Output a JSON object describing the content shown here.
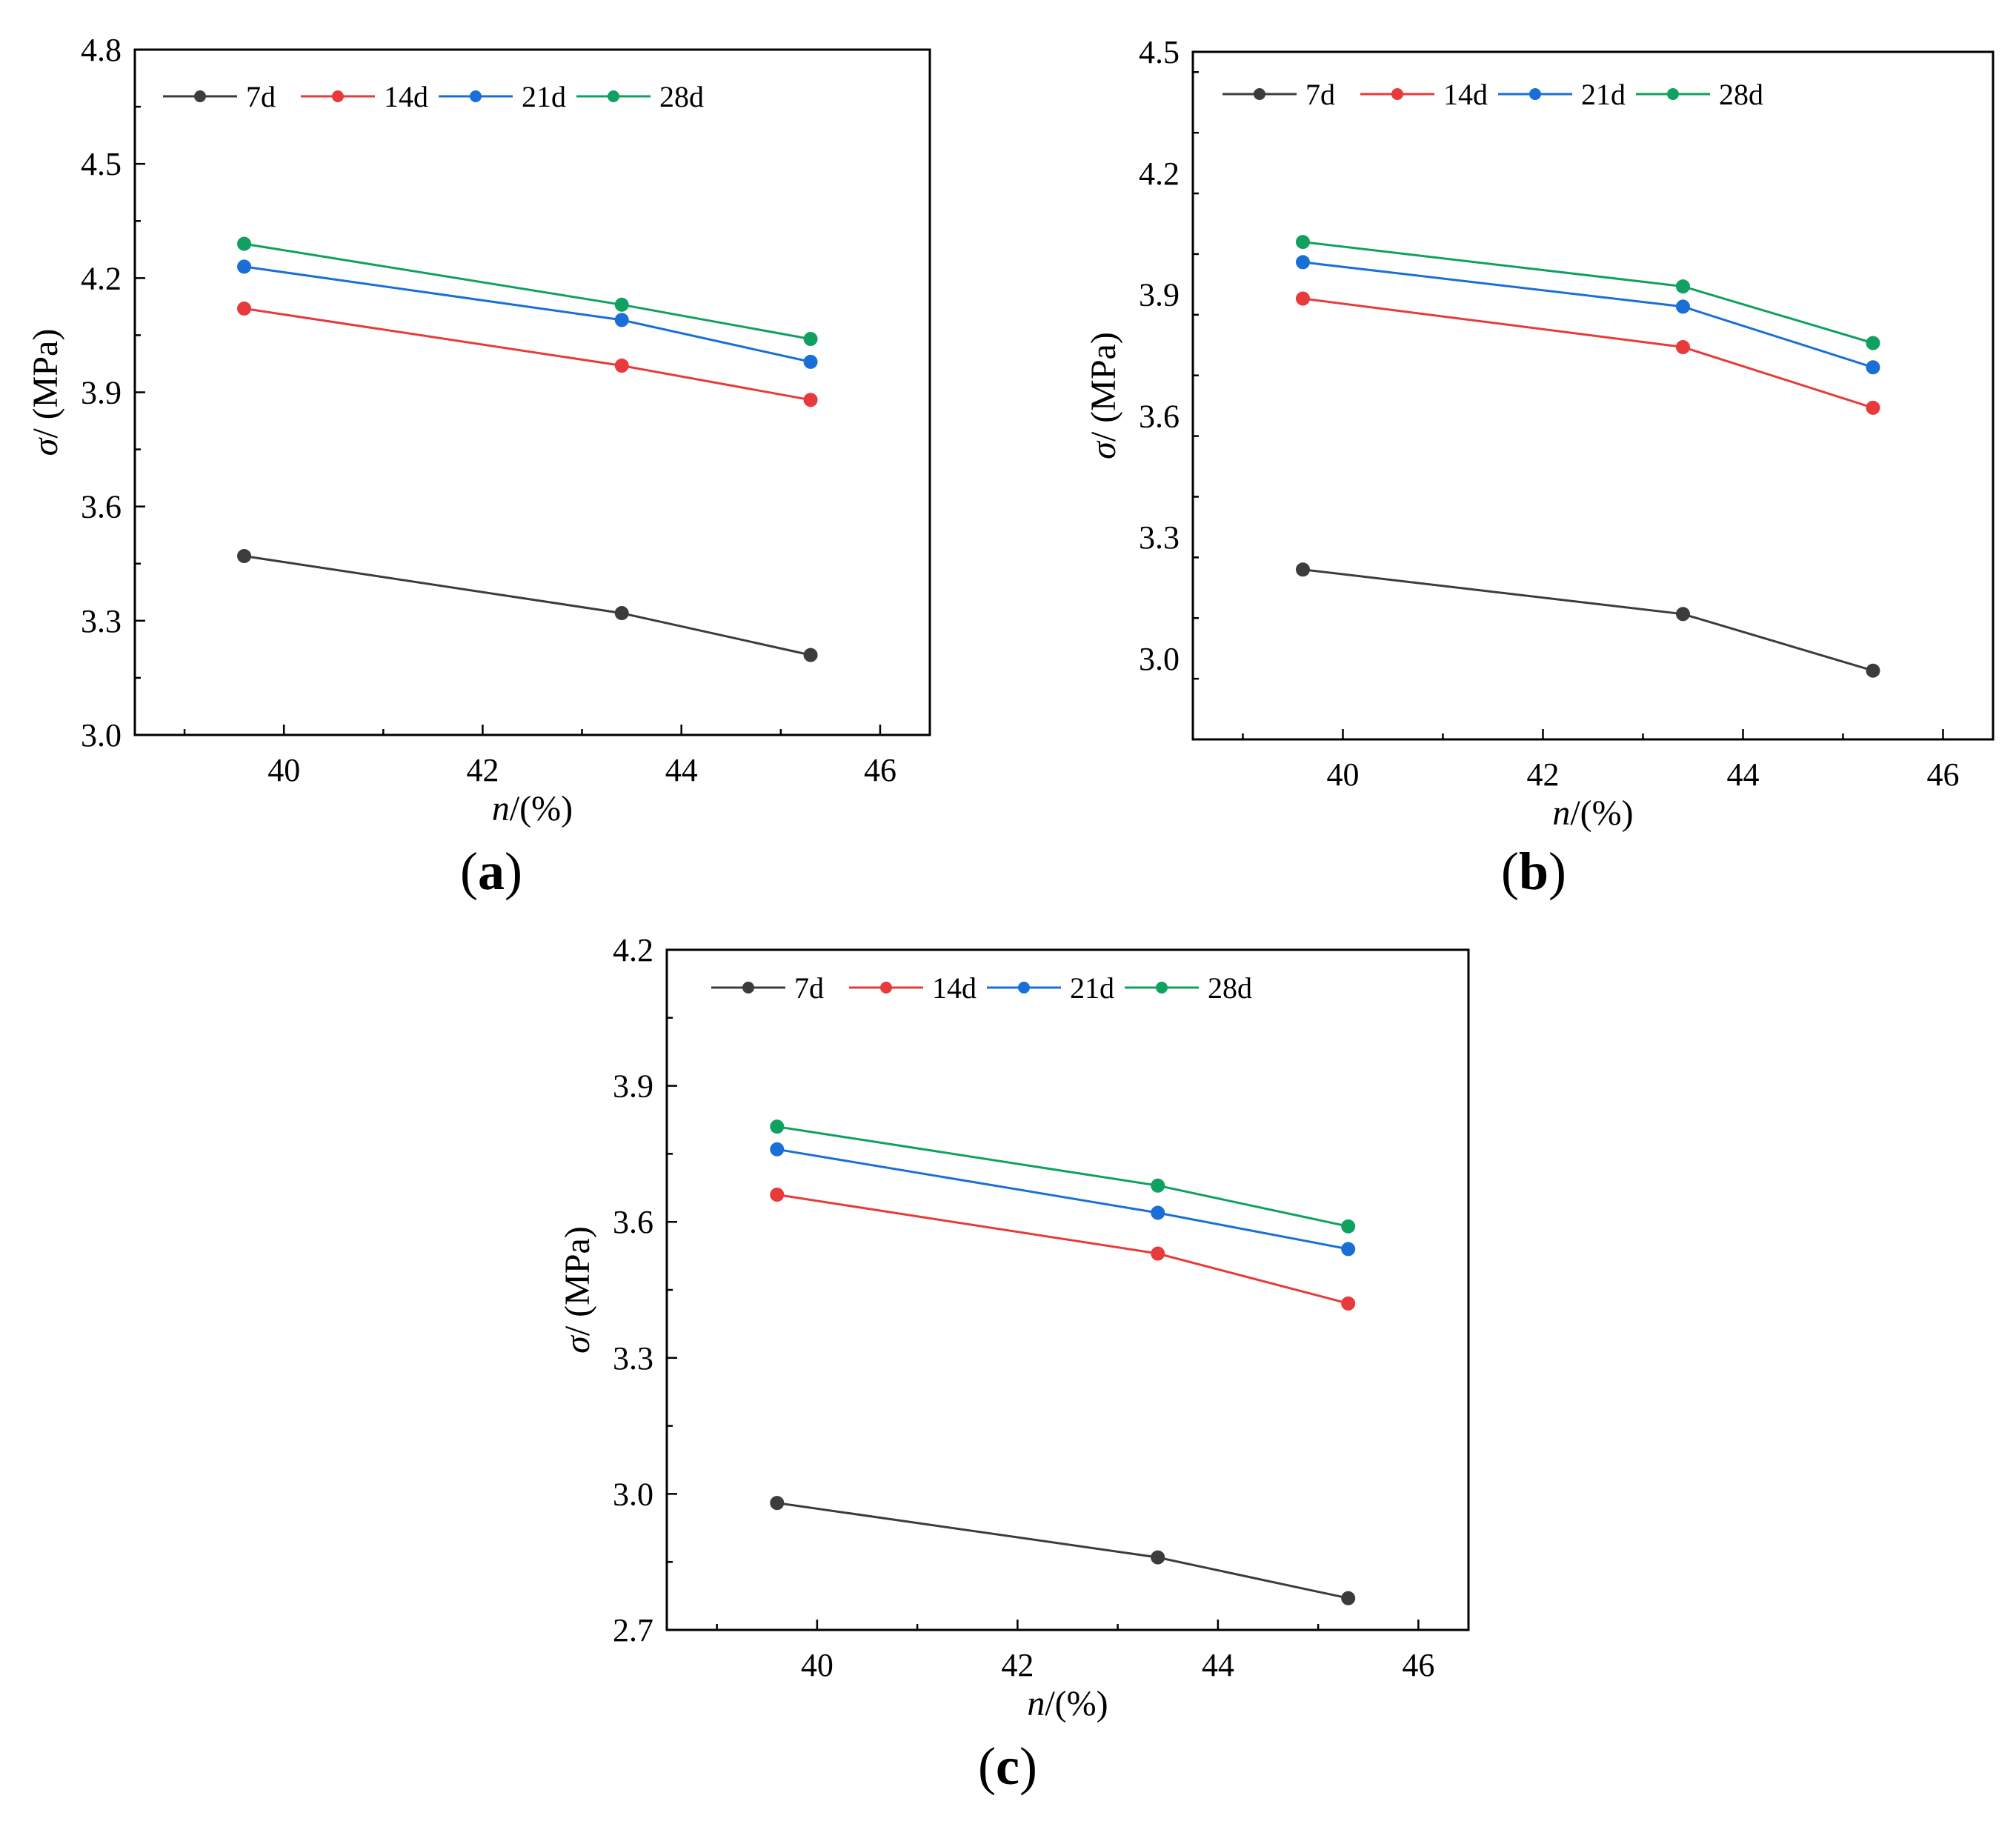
{
  "chart_data": [
    {
      "type": "line",
      "panel_label": "a",
      "xlabel_var": "n",
      "xlabel_unit": "/(%)",
      "ylabel_var": "σ",
      "ylabel_unit": "/ (MPa)",
      "xlim": [
        38.5,
        46.5
      ],
      "ylim": [
        3.0,
        4.8
      ],
      "xticks": [
        40,
        42,
        44,
        46
      ],
      "yticks": [
        3.0,
        3.3,
        3.6,
        3.9,
        4.2,
        4.5,
        4.8
      ],
      "ytick_labels": [
        "3.0",
        "3.3",
        "3.6",
        "3.9",
        "4.2",
        "4.5",
        "4.8"
      ],
      "x": [
        39.6,
        43.4,
        45.3
      ],
      "series": [
        {
          "name": "7d",
          "color": "#3c3c3c",
          "values": [
            3.47,
            3.32,
            3.21
          ]
        },
        {
          "name": "14d",
          "color": "#e83a3a",
          "values": [
            4.12,
            3.97,
            3.88
          ]
        },
        {
          "name": "21d",
          "color": "#1a6fd6",
          "values": [
            4.23,
            4.09,
            3.98
          ]
        },
        {
          "name": "28d",
          "color": "#10a060",
          "values": [
            4.29,
            4.13,
            4.04
          ]
        }
      ]
    },
    {
      "type": "line",
      "panel_label": "b",
      "xlabel_var": "n",
      "xlabel_unit": "/(%)",
      "ylabel_var": "σ",
      "ylabel_unit": "/ (MPa)",
      "xlim": [
        38.5,
        46.5
      ],
      "ylim": [
        2.8,
        4.5
      ],
      "xticks": [
        40,
        42,
        44,
        46
      ],
      "yticks": [
        3.0,
        3.3,
        3.6,
        3.9,
        4.2,
        4.5
      ],
      "ytick_labels": [
        "3.0",
        "3.3",
        "3.6",
        "3.9",
        "4.2",
        "4.5"
      ],
      "x": [
        39.6,
        43.4,
        45.3
      ],
      "series": [
        {
          "name": "7d",
          "color": "#3c3c3c",
          "values": [
            3.22,
            3.11,
            2.97
          ]
        },
        {
          "name": "14d",
          "color": "#e83a3a",
          "values": [
            3.89,
            3.77,
            3.62
          ]
        },
        {
          "name": "21d",
          "color": "#1a6fd6",
          "values": [
            3.98,
            3.87,
            3.72
          ]
        },
        {
          "name": "28d",
          "color": "#10a060",
          "values": [
            4.03,
            3.92,
            3.78
          ]
        }
      ]
    },
    {
      "type": "line",
      "panel_label": "c",
      "xlabel_var": "n",
      "xlabel_unit": "/(%)",
      "ylabel_var": "σ",
      "ylabel_unit": "/ (MPa)",
      "xlim": [
        38.5,
        46.5
      ],
      "ylim": [
        2.7,
        4.2
      ],
      "xticks": [
        40,
        42,
        44,
        46
      ],
      "yticks": [
        2.7,
        3.0,
        3.3,
        3.6,
        3.9,
        4.2
      ],
      "ytick_labels": [
        "2.7",
        "3.0",
        "3.3",
        "3.6",
        "3.9",
        "4.2"
      ],
      "x": [
        39.6,
        43.4,
        45.3
      ],
      "series": [
        {
          "name": "7d",
          "color": "#3c3c3c",
          "values": [
            2.98,
            2.86,
            2.77
          ]
        },
        {
          "name": "14d",
          "color": "#e83a3a",
          "values": [
            3.66,
            3.53,
            3.42
          ]
        },
        {
          "name": "21d",
          "color": "#1a6fd6",
          "values": [
            3.76,
            3.62,
            3.54
          ]
        },
        {
          "name": "28d",
          "color": "#10a060",
          "values": [
            3.81,
            3.68,
            3.59
          ]
        }
      ]
    }
  ]
}
